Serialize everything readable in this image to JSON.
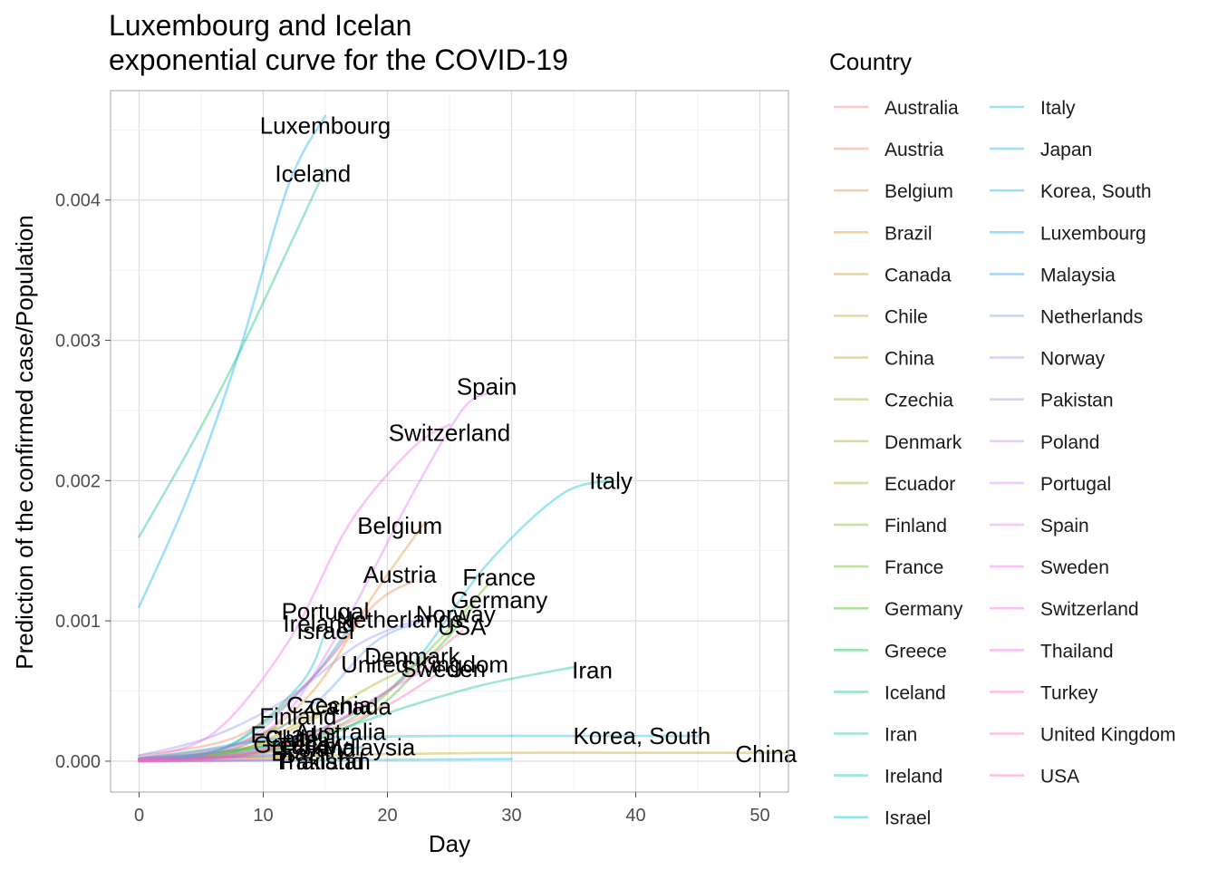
{
  "chart_data": {
    "type": "line",
    "title_lines": [
      "Luxembourg and Icelan",
      "exponential curve for the COVID-19"
    ],
    "xlabel": "Day",
    "ylabel": "Prediction of the confirmed case/Population",
    "xlim": [
      -2.3,
      52.3
    ],
    "ylim": [
      -0.00022,
      0.00478
    ],
    "xticks": [
      0,
      10,
      20,
      30,
      40,
      50
    ],
    "xtick_labels": [
      "0",
      "10",
      "20",
      "30",
      "40",
      "50"
    ],
    "yticks": [
      0,
      0.001,
      0.002,
      0.003,
      0.004
    ],
    "ytick_labels": [
      "0.000",
      "0.001",
      "0.002",
      "0.003",
      "0.004"
    ],
    "grid": true,
    "legend": {
      "title": "Country",
      "placement": "right",
      "columns": 2
    },
    "series": [
      {
        "name": "Australia",
        "color": "#F8766D",
        "x": [
          0,
          6,
          12,
          15
        ],
        "y": [
          1e-05,
          4e-05,
          0.00013,
          0.00019
        ],
        "label": "Australia",
        "label_pos": [
          16.2,
          0.00021
        ]
      },
      {
        "name": "Austria",
        "color": "#F07F50",
        "x": [
          0,
          8,
          14,
          19,
          22
        ],
        "y": [
          4e-05,
          0.00018,
          0.0006,
          0.00112,
          0.00128
        ],
        "label": "Austria",
        "label_pos": [
          21.0,
          0.00133
        ]
      },
      {
        "name": "Belgium",
        "color": "#E8892E",
        "x": [
          0,
          8,
          14,
          19,
          23
        ],
        "y": [
          2e-05,
          0.0001,
          0.0005,
          0.0012,
          0.0017
        ],
        "label": "Belgium",
        "label_pos": [
          21.0,
          0.00168
        ]
      },
      {
        "name": "Brazil",
        "color": "#DE9100",
        "x": [
          0,
          6,
          12
        ],
        "y": [
          0.0,
          1e-05,
          3e-05
        ],
        "label": "Brazil",
        "label_pos": [
          13.0,
          6e-05
        ]
      },
      {
        "name": "Canada",
        "color": "#D39700",
        "x": [
          0,
          8,
          13,
          16
        ],
        "y": [
          1e-05,
          8e-05,
          0.00028,
          0.0004
        ],
        "label": "Canada",
        "label_pos": [
          17.0,
          0.00039
        ]
      },
      {
        "name": "Chile",
        "color": "#C79D00",
        "x": [
          0,
          6,
          12
        ],
        "y": [
          1e-05,
          6e-05,
          0.00015
        ],
        "label": "Chile",
        "label_pos": [
          12.3,
          0.00016
        ]
      },
      {
        "name": "China",
        "color": "#BBA200",
        "x": [
          0,
          10,
          20,
          30,
          40,
          52
        ],
        "y": [
          1e-05,
          3e-05,
          5e-05,
          6e-05,
          6e-05,
          6e-05
        ],
        "label": "China",
        "label_pos": [
          50.5,
          5e-05
        ]
      },
      {
        "name": "Czechia",
        "color": "#ADA700",
        "x": [
          0,
          8,
          13,
          15
        ],
        "y": [
          2e-05,
          0.00012,
          0.00032,
          0.00041
        ],
        "label": "Czechia",
        "label_pos": [
          15.3,
          0.0004
        ]
      },
      {
        "name": "Denmark",
        "color": "#9DAC00",
        "x": [
          0,
          8,
          14,
          19,
          23
        ],
        "y": [
          1e-05,
          8e-05,
          0.0003,
          0.00055,
          0.00072
        ],
        "label": "Denmark",
        "label_pos": [
          22.0,
          0.00075
        ]
      },
      {
        "name": "Ecuador",
        "color": "#8BB000",
        "x": [
          0,
          6,
          12
        ],
        "y": [
          1e-05,
          4e-05,
          0.00015
        ],
        "label": "Ecuador",
        "label_pos": [
          12.5,
          0.00019
        ]
      },
      {
        "name": "Finland",
        "color": "#76B400",
        "x": [
          0,
          6,
          11
        ],
        "y": [
          1e-05,
          7e-05,
          0.00024
        ],
        "label": "Finland",
        "label_pos": [
          12.8,
          0.00032
        ]
      },
      {
        "name": "France",
        "color": "#5BB800",
        "x": [
          0,
          10,
          18,
          24,
          28
        ],
        "y": [
          1e-05,
          7e-05,
          0.00035,
          0.00085,
          0.00125
        ],
        "label": "France",
        "label_pos": [
          29.0,
          0.00131
        ]
      },
      {
        "name": "Germany",
        "color": "#2BBB00",
        "x": [
          0,
          10,
          18,
          24,
          27
        ],
        "y": [
          1e-05,
          6e-05,
          0.0003,
          0.0008,
          0.00111
        ],
        "label": "Germany",
        "label_pos": [
          29.0,
          0.00115
        ]
      },
      {
        "name": "Greece",
        "color": "#00BD3E",
        "x": [
          0,
          6,
          12
        ],
        "y": [
          1e-05,
          3e-05,
          0.0001
        ],
        "label": "Greece",
        "label_pos": [
          12.3,
          0.00012
        ]
      },
      {
        "name": "Iceland",
        "color": "#00BF6B",
        "x": [
          0,
          4,
          8,
          12,
          15
        ],
        "y": [
          0.0016,
          0.00222,
          0.0029,
          0.00365,
          0.00422
        ],
        "label": "Iceland",
        "label_pos": [
          14.0,
          0.00419
        ]
      },
      {
        "name": "Iran",
        "color": "#00C08B",
        "x": [
          0,
          8,
          15,
          22,
          28,
          35
        ],
        "y": [
          2e-05,
          8e-05,
          0.0002,
          0.0004,
          0.00055,
          0.00067
        ],
        "label": "Iran",
        "label_pos": [
          36.5,
          0.00065
        ]
      },
      {
        "name": "Ireland",
        "color": "#00C0A6",
        "x": [
          0,
          7,
          13,
          17
        ],
        "y": [
          1e-05,
          0.0001,
          0.0005,
          0.00096
        ],
        "label": "Ireland",
        "label_pos": [
          14.5,
          0.00098
        ]
      },
      {
        "name": "Israel",
        "color": "#00BFBE",
        "x": [
          0,
          7,
          13,
          15
        ],
        "y": [
          1e-05,
          0.0001,
          0.00055,
          0.00092
        ],
        "label": "Israel",
        "label_pos": [
          15.0,
          0.00093
        ]
      },
      {
        "name": "Italy",
        "color": "#00BDD4",
        "x": [
          0,
          10,
          20,
          28,
          34,
          38
        ],
        "y": [
          1e-05,
          0.0001,
          0.0005,
          0.0014,
          0.0019,
          0.002
        ],
        "label": "Italy",
        "label_pos": [
          38.0,
          0.002
        ]
      },
      {
        "name": "Japan",
        "color": "#00B8E7",
        "x": [
          0,
          10,
          20,
          30
        ],
        "y": [
          0.0,
          5e-06,
          1e-05,
          1.5e-05
        ],
        "label": "",
        "label_pos": null
      },
      {
        "name": "Korea, South",
        "color": "#00B2F6",
        "x": [
          0,
          5,
          10,
          15,
          25,
          35,
          45
        ],
        "y": [
          2e-05,
          8e-05,
          0.00015,
          0.00017,
          0.00018,
          0.00018,
          0.00018
        ],
        "label": "Korea, South",
        "label_pos": [
          40.5,
          0.00018
        ]
      },
      {
        "name": "Luxembourg",
        "color": "#00ABFD",
        "x": [
          0,
          4,
          8,
          12,
          15
        ],
        "y": [
          0.0011,
          0.0019,
          0.0029,
          0.0041,
          0.0046
        ],
        "label": "Luxembourg",
        "label_pos": [
          15.0,
          0.00453
        ]
      },
      {
        "name": "Malaysia",
        "color": "#00A1FF",
        "x": [
          0,
          8,
          14,
          18
        ],
        "y": [
          1e-05,
          3e-05,
          7e-05,
          0.0001
        ],
        "label": "Malaysia",
        "label_pos": [
          18.5,
          0.0001
        ]
      },
      {
        "name": "Netherlands",
        "color": "#619CFF",
        "x": [
          0,
          8,
          14,
          19,
          23
        ],
        "y": [
          1e-05,
          0.0001,
          0.0004,
          0.00085,
          0.001
        ],
        "label": "Netherlands",
        "label_pos": [
          21.0,
          0.00101
        ]
      },
      {
        "name": "Norway",
        "color": "#8F91FF",
        "x": [
          0,
          6,
          12,
          18,
          24
        ],
        "y": [
          4e-05,
          0.00018,
          0.00045,
          0.00085,
          0.00105
        ],
        "label": "Norway",
        "label_pos": [
          25.5,
          0.00105
        ]
      },
      {
        "name": "Pakistan",
        "color": "#AC88FF",
        "x": [
          0,
          6,
          12
        ],
        "y": [
          0.0,
          3e-06,
          1e-05
        ],
        "label": "Pakistan",
        "label_pos": [
          15.0,
          0.0
        ]
      },
      {
        "name": "Poland",
        "color": "#C17FFF",
        "x": [
          0,
          6,
          12
        ],
        "y": [
          0.0,
          2e-05,
          5e-05
        ],
        "label": "Poland",
        "label_pos": [
          14.5,
          9e-05
        ]
      },
      {
        "name": "Portugal",
        "color": "#D277FF",
        "x": [
          0,
          8,
          14,
          18
        ],
        "y": [
          1e-05,
          0.00012,
          0.0006,
          0.00105
        ],
        "label": "Portugal",
        "label_pos": [
          15.0,
          0.00107
        ]
      },
      {
        "name": "Spain",
        "color": "#E06FFF",
        "x": [
          0,
          10,
          16,
          22,
          26,
          28
        ],
        "y": [
          1e-05,
          0.0002,
          0.0009,
          0.0019,
          0.0025,
          0.00262
        ],
        "label": "Spain",
        "label_pos": [
          28.0,
          0.00267
        ]
      },
      {
        "name": "Sweden",
        "color": "#EC69EF",
        "x": [
          0,
          8,
          14,
          20,
          24
        ],
        "y": [
          1e-05,
          5e-05,
          0.0002,
          0.0005,
          0.0007
        ],
        "label": "Sweden",
        "label_pos": [
          24.5,
          0.00066
        ]
      },
      {
        "name": "Switzerland",
        "color": "#F564E3",
        "x": [
          0,
          6,
          12,
          17,
          22,
          25
        ],
        "y": [
          2e-05,
          0.0002,
          0.00085,
          0.0017,
          0.00223,
          0.0024
        ],
        "label": "Switzerland",
        "label_pos": [
          25.0,
          0.00234
        ]
      },
      {
        "name": "Thailand",
        "color": "#FB61D4",
        "x": [
          0,
          6,
          12
        ],
        "y": [
          0.0,
          3e-06,
          1e-05
        ],
        "label": "Thailand",
        "label_pos": [
          14.5,
          0.0
        ]
      },
      {
        "name": "Turkey",
        "color": "#FE61C2",
        "x": [
          0,
          6,
          12,
          16
        ],
        "y": [
          0.0,
          2e-05,
          8e-05,
          0.00014
        ],
        "label": "Turkey",
        "label_pos": [
          14.0,
          0.00011
        ]
      },
      {
        "name": "United Kingdom",
        "color": "#FF63AE",
        "x": [
          0,
          8,
          14,
          20,
          24
        ],
        "y": [
          1e-05,
          5e-05,
          0.00018,
          0.0004,
          0.00062
        ],
        "label": "United Kingdom",
        "label_pos": [
          23.0,
          0.00069
        ]
      },
      {
        "name": "USA",
        "color": "#FF6998",
        "x": [
          0,
          8,
          14,
          20,
          26
        ],
        "y": [
          0.0,
          4e-05,
          0.0002,
          0.0005,
          0.00093
        ],
        "label": "USA",
        "label_pos": [
          26.0,
          0.00096
        ]
      }
    ]
  }
}
